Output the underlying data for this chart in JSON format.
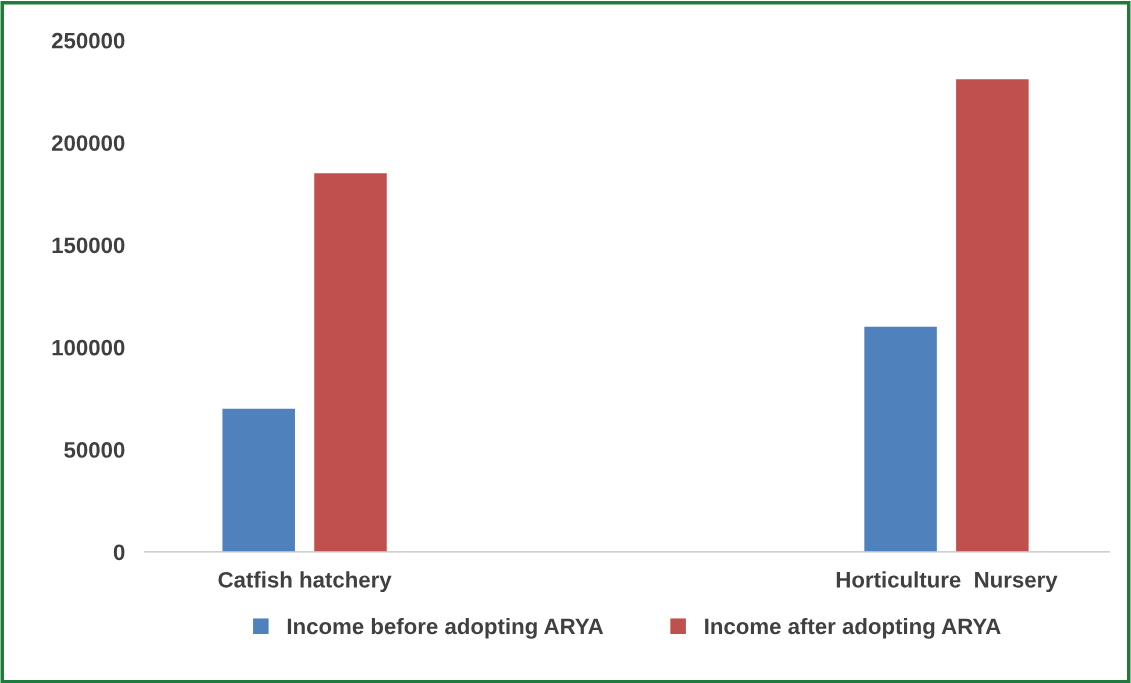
{
  "chart_data": {
    "type": "bar",
    "categories": [
      "Catfish hatchery",
      "Horticulture  Nursery"
    ],
    "series": [
      {
        "name": "Income before adopting ARYA",
        "color": "#4f81bd",
        "values": [
          70000,
          110000
        ]
      },
      {
        "name": "Income after adopting ARYA",
        "color": "#c0504d",
        "values": [
          185000,
          231000
        ]
      }
    ],
    "ylim": [
      0,
      250000
    ],
    "yticks": [
      0,
      50000,
      100000,
      150000,
      200000,
      250000
    ],
    "grid": false,
    "legend": "bottom"
  }
}
